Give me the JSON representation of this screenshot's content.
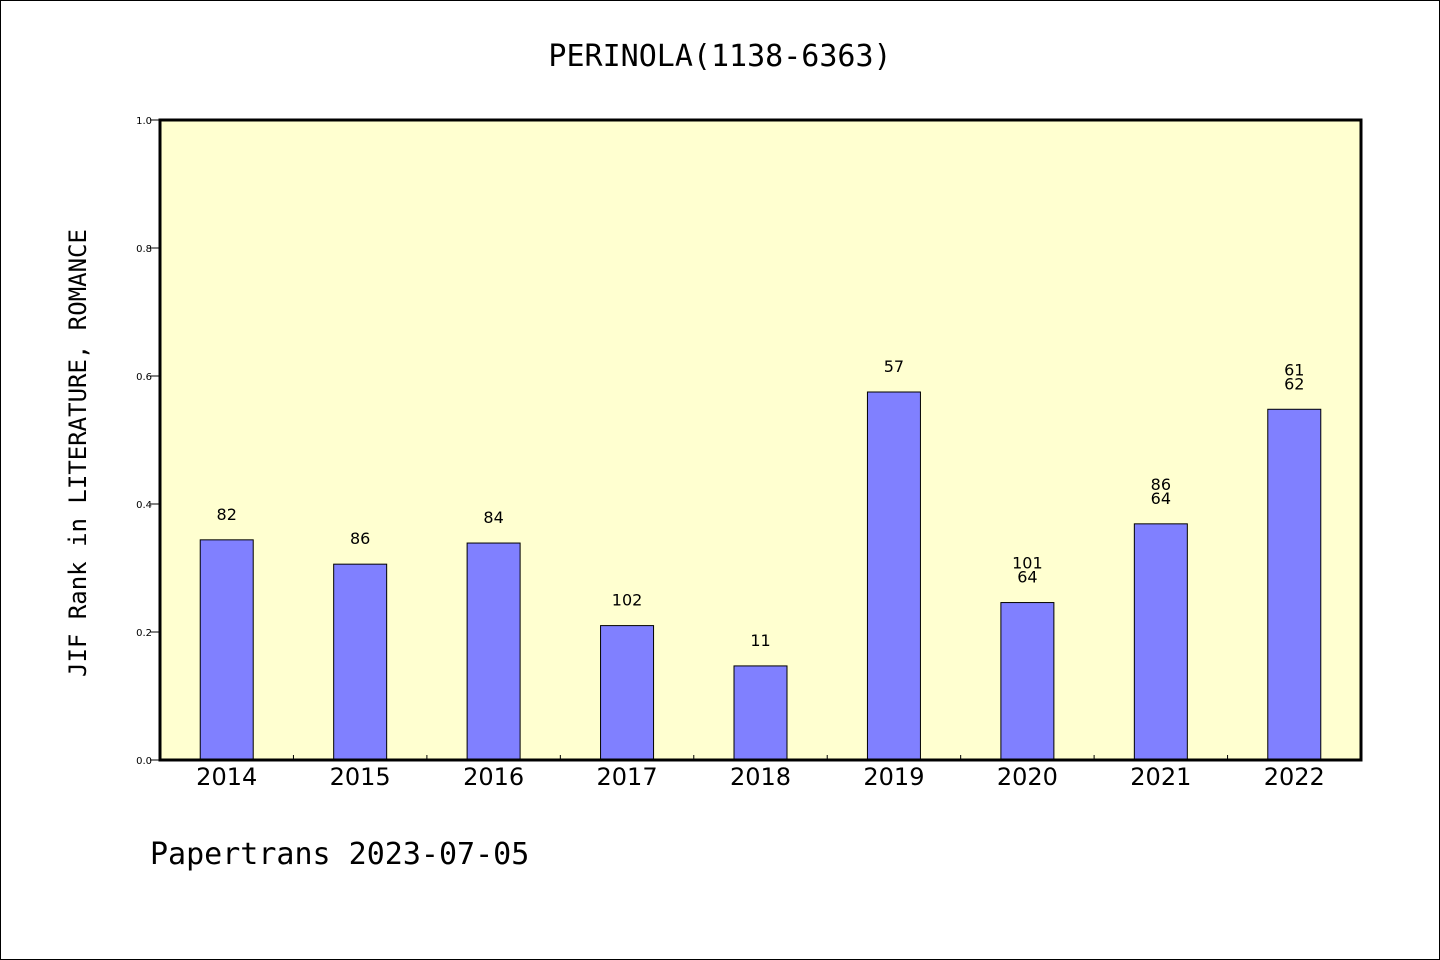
{
  "chart_data": {
    "type": "bar",
    "title": "PERINOLA(1138-6363)",
    "xlabel": "",
    "ylabel": "JIF Rank in LITERATURE, ROMANCE",
    "ylim": [
      0.0,
      1.0
    ],
    "yticks": [
      "0.0",
      "0.2",
      "0.4",
      "0.6",
      "0.8",
      "1.0"
    ],
    "grid": false,
    "categories": [
      "2014",
      "2015",
      "2016",
      "2017",
      "2018",
      "2019",
      "2020",
      "2021",
      "2022"
    ],
    "values": [
      0.344,
      0.306,
      0.339,
      0.21,
      0.147,
      0.575,
      0.246,
      0.369,
      0.548
    ],
    "bar_labels": [
      [
        "82"
      ],
      [
        "86"
      ],
      [
        "84"
      ],
      [
        "102"
      ],
      [
        "11"
      ],
      [
        "57"
      ],
      [
        "101",
        "64"
      ],
      [
        "86",
        "64"
      ],
      [
        "61",
        "62"
      ]
    ],
    "colors": {
      "plot_bg": "#ffffd0",
      "bar": "#8080ff"
    }
  },
  "footer": "Papertrans 2023-07-05"
}
